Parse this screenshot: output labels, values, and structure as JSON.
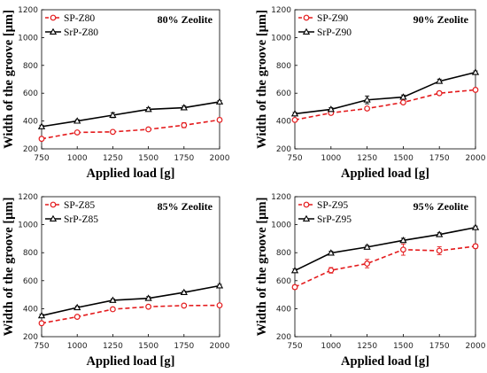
{
  "chart_data": [
    {
      "type": "line",
      "title": "80% Zeolite",
      "xlabel": "Applied load [g]",
      "ylabel": "Width of the groove  [µm]",
      "xlim": [
        750,
        2000
      ],
      "ylim": [
        200,
        1200
      ],
      "x": [
        750,
        1000,
        1250,
        1500,
        1750,
        2000
      ],
      "x_ticks": [
        "750",
        "1000",
        "1250",
        "1500",
        "1750",
        "2000"
      ],
      "y_ticks": [
        "200",
        "400",
        "600",
        "800",
        "1000",
        "1200"
      ],
      "legend_position": "top-left",
      "grid": false,
      "series": [
        {
          "name": "SP-Z80",
          "values": [
            272,
            318,
            322,
            340,
            370,
            408
          ],
          "errors": [
            12,
            10,
            10,
            10,
            18,
            14
          ],
          "color": "#e41a1c",
          "dash": true,
          "marker": "circle"
        },
        {
          "name": "SrP-Z80",
          "values": [
            360,
            400,
            442,
            484,
            496,
            538
          ],
          "errors": [
            10,
            10,
            18,
            12,
            12,
            10
          ],
          "color": "#000000",
          "dash": false,
          "marker": "triangle"
        }
      ]
    },
    {
      "type": "line",
      "title": "90% Zeolite",
      "xlabel": "Applied load [g]",
      "ylabel": "Width of the groove  [µm]",
      "xlim": [
        750,
        2000
      ],
      "ylim": [
        200,
        1200
      ],
      "x": [
        750,
        1000,
        1250,
        1500,
        1750,
        2000
      ],
      "x_ticks": [
        "750",
        "1000",
        "1250",
        "1500",
        "1750",
        "2000"
      ],
      "y_ticks": [
        "200",
        "400",
        "600",
        "800",
        "1000",
        "1200"
      ],
      "legend_position": "top-left",
      "grid": false,
      "series": [
        {
          "name": "SP-Z90",
          "values": [
            408,
            458,
            490,
            534,
            600,
            624
          ],
          "errors": [
            12,
            12,
            12,
            12,
            12,
            12
          ],
          "color": "#e41a1c",
          "dash": true,
          "marker": "circle"
        },
        {
          "name": "SrP-Z90",
          "values": [
            452,
            484,
            552,
            572,
            686,
            750
          ],
          "errors": [
            10,
            12,
            28,
            15,
            15,
            10
          ],
          "color": "#000000",
          "dash": false,
          "marker": "triangle"
        }
      ]
    },
    {
      "type": "line",
      "title": "85% Zeolite",
      "xlabel": "Applied load [g]",
      "ylabel": "Width of the groove  [µm]",
      "xlim": [
        750,
        2000
      ],
      "ylim": [
        200,
        1200
      ],
      "x": [
        750,
        1000,
        1250,
        1500,
        1750,
        2000
      ],
      "x_ticks": [
        "750",
        "1000",
        "1250",
        "1500",
        "1750",
        "2000"
      ],
      "y_ticks": [
        "200",
        "400",
        "600",
        "800",
        "1000",
        "1200"
      ],
      "legend_position": "top-left",
      "grid": false,
      "series": [
        {
          "name": "SP-Z85",
          "values": [
            296,
            342,
            396,
            414,
            422,
            424
          ],
          "errors": [
            10,
            10,
            12,
            10,
            10,
            10
          ],
          "color": "#e41a1c",
          "dash": true,
          "marker": "circle"
        },
        {
          "name": "SrP-Z85",
          "values": [
            350,
            408,
            460,
            474,
            516,
            564
          ],
          "errors": [
            10,
            10,
            10,
            12,
            10,
            10
          ],
          "color": "#000000",
          "dash": false,
          "marker": "triangle"
        }
      ]
    },
    {
      "type": "line",
      "title": "95% Zeolite",
      "xlabel": "Applied load [g]",
      "ylabel": "Width of the groove  [µm]",
      "xlim": [
        750,
        2000
      ],
      "ylim": [
        200,
        1200
      ],
      "x": [
        750,
        1000,
        1250,
        1500,
        1750,
        2000
      ],
      "x_ticks": [
        "750",
        "1000",
        "1250",
        "1500",
        "1750",
        "2000"
      ],
      "y_ticks": [
        "200",
        "400",
        "600",
        "800",
        "1000",
        "1200"
      ],
      "legend_position": "top-left",
      "grid": false,
      "series": [
        {
          "name": "SP-Z95",
          "values": [
            554,
            674,
            722,
            822,
            814,
            846
          ],
          "errors": [
            15,
            20,
            30,
            40,
            28,
            15
          ],
          "color": "#e41a1c",
          "dash": true,
          "marker": "circle"
        },
        {
          "name": "SrP-Z95",
          "values": [
            672,
            798,
            840,
            888,
            930,
            980
          ],
          "errors": [
            12,
            12,
            12,
            15,
            12,
            10
          ],
          "color": "#000000",
          "dash": false,
          "marker": "triangle"
        }
      ]
    }
  ]
}
